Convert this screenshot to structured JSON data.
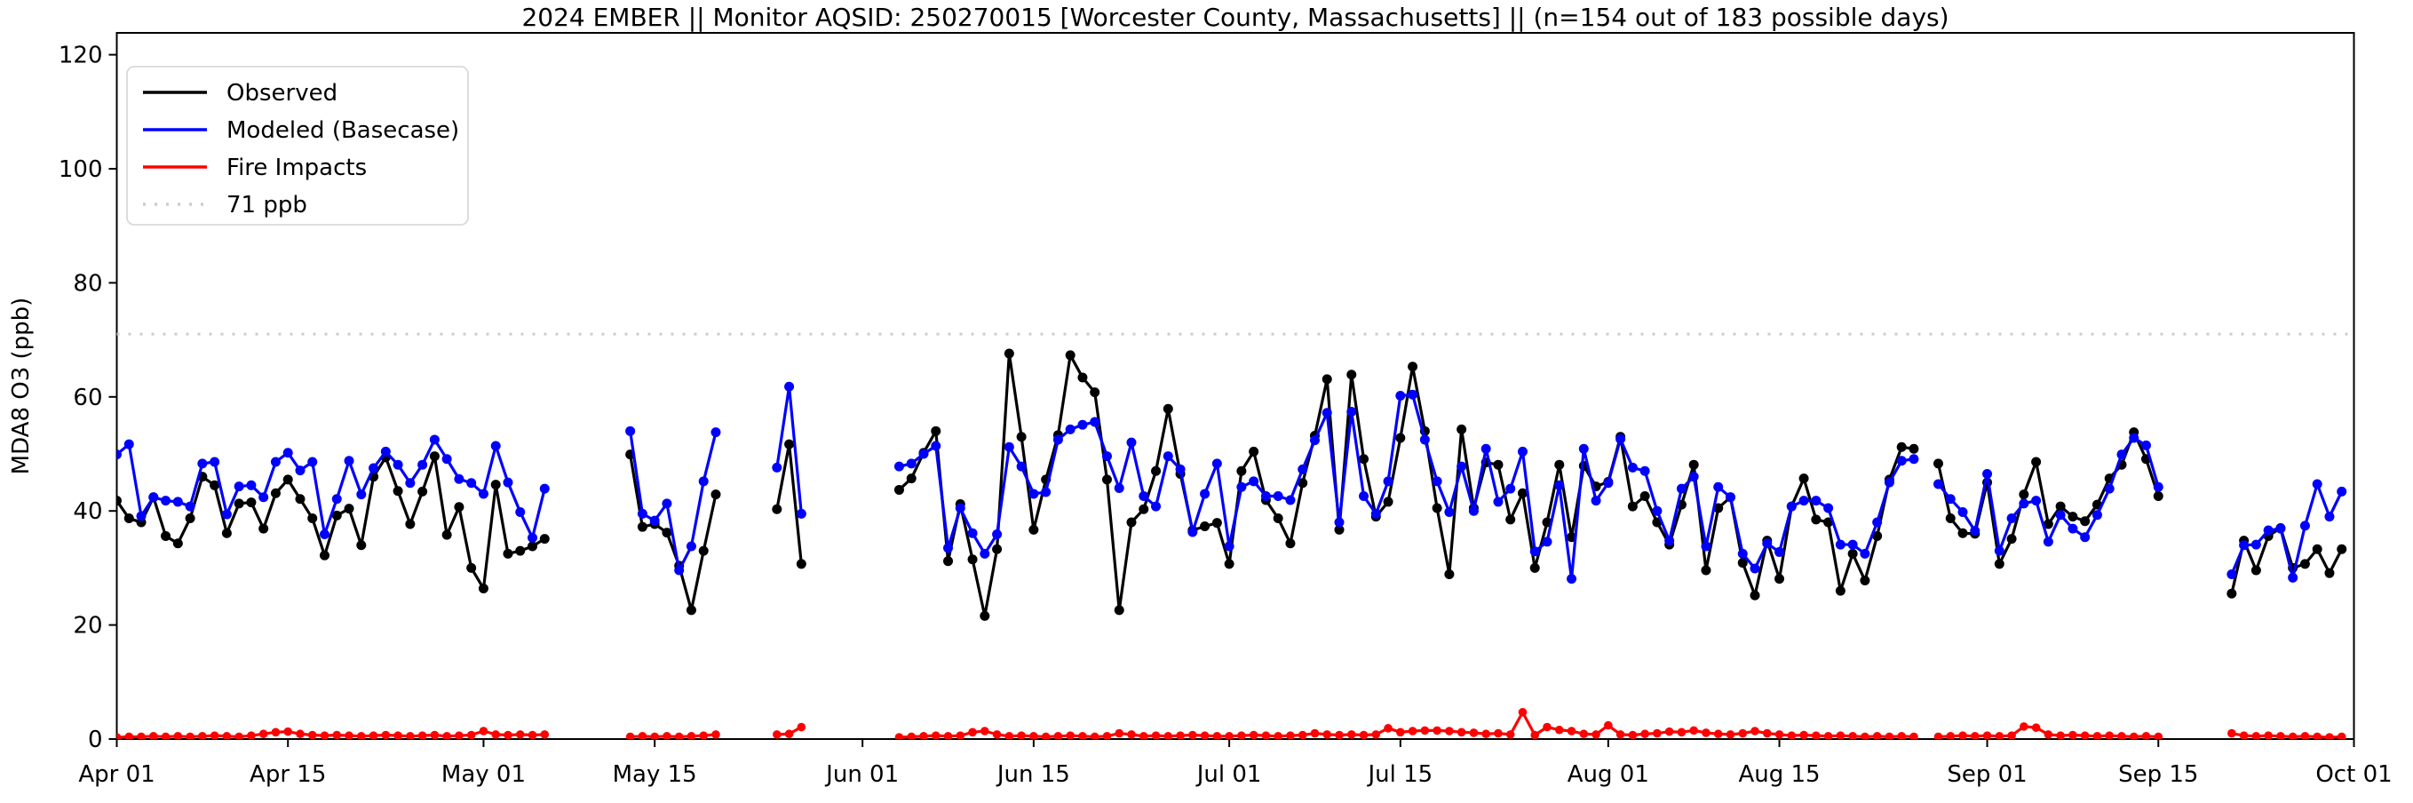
{
  "title": "2024 EMBER || Monitor AQSID: 250270015 [Worcester County, Massachusetts] || (n=154 out of 183 possible days)",
  "axes": {
    "ylabel": "MDA8 O3 (ppb)",
    "yticks": [
      0,
      20,
      40,
      60,
      80,
      100,
      120
    ],
    "xtick_days": [
      0,
      14,
      30,
      44,
      61,
      75,
      91,
      105,
      122,
      136,
      153,
      167,
      183
    ],
    "xtick_labels": [
      "Apr 01",
      "Apr 15",
      "May 01",
      "May 15",
      "Jun 01",
      "Jun 15",
      "Jul 01",
      "Jul 15",
      "Aug 01",
      "Aug 15",
      "Sep 01",
      "Sep 15",
      "Oct 01"
    ]
  },
  "legend": {
    "entries": [
      {
        "label": "Observed",
        "color": "#000000",
        "style": "solid"
      },
      {
        "label": "Modeled (Basecase)",
        "color": "#0000ff",
        "style": "solid"
      },
      {
        "label": "Fire Impacts",
        "color": "#ff0000",
        "style": "solid"
      },
      {
        "label": "71 ppb",
        "color": "#cccccc",
        "style": "dotted"
      }
    ]
  },
  "chart_data": {
    "type": "line",
    "title": "2024 EMBER || Monitor AQSID: 250270015 [Worcester County, Massachusetts] || (n=154 out of 183 possible days)",
    "xlabel": "",
    "ylabel": "MDA8 O3 (ppb)",
    "ylim": [
      0,
      120
    ],
    "x_axis": "daily from 2024-04-01 (day 0) to 2024-10-01 (day 183); data through Sep 30 (day 182); null = missing day",
    "threshold": {
      "value": 71,
      "label": "71 ppb",
      "color": "#cccccc",
      "style": "dotted"
    },
    "legend_position": "upper left",
    "grid": false,
    "series": [
      {
        "name": "Observed",
        "color": "#000000",
        "values": [
          41.8,
          38.7,
          38,
          42.4,
          35.6,
          34.3,
          38.7,
          46,
          44.5,
          36.1,
          41.3,
          41.5,
          36.9,
          43.1,
          45.5,
          42.1,
          38.7,
          32.2,
          39.2,
          40.4,
          34,
          46,
          49.4,
          43.5,
          37.7,
          43.4,
          49.6,
          35.8,
          40.7,
          30,
          26.4,
          44.6,
          32.5,
          33,
          33.8,
          35.1,
          null,
          null,
          null,
          null,
          null,
          null,
          49.9,
          37.2,
          37.7,
          36.2,
          30.4,
          22.6,
          33,
          42.9,
          null,
          null,
          null,
          null,
          40.3,
          51.7,
          30.7,
          null,
          null,
          null,
          null,
          null,
          null,
          null,
          43.7,
          45.7,
          50.2,
          54,
          31.2,
          41.2,
          31.5,
          21.6,
          33.3,
          67.6,
          53,
          36.7,
          45.5,
          53.3,
          67.3,
          63.4,
          60.8,
          45.5,
          22.6,
          38,
          40.3,
          47,
          57.9,
          46.5,
          36.6,
          37.3,
          37.9,
          30.7,
          47,
          50.4,
          41.9,
          38.7,
          34.3,
          44.9,
          53.2,
          63.1,
          36.7,
          63.9,
          49.1,
          39,
          41.6,
          52.8,
          65.3,
          54,
          40.5,
          28.9,
          54.3,
          40.5,
          48.5,
          48.1,
          38.5,
          43.1,
          30,
          38,
          48.1,
          35.4,
          47.9,
          44.3,
          45.1,
          53,
          40.8,
          42.6,
          38,
          34.1,
          41.1,
          48.1,
          29.6,
          40.5,
          42.4,
          30.9,
          25.2,
          34.8,
          28.1,
          40.8,
          45.7,
          38.5,
          38,
          26,
          32.5,
          27.8,
          35.6,
          45.5,
          51.2,
          50.9,
          null,
          48.3,
          38.7,
          36.1,
          36,
          45,
          30.7,
          35.1,
          42.9,
          48.6,
          37.7,
          40.8,
          39,
          38.2,
          41.1,
          45.7,
          48.1,
          53.8,
          49.1,
          42.6,
          null,
          null,
          null,
          null,
          null,
          25.5,
          34.8,
          29.6,
          35.6,
          37,
          30,
          30.7,
          33.3,
          29.1,
          33.3
        ]
      },
      {
        "name": "Modeled (Basecase)",
        "color": "#0000ff",
        "values": [
          49.9,
          51.7,
          39.1,
          42.4,
          41.8,
          41.6,
          40.8,
          48.3,
          48.6,
          39.4,
          44.3,
          44.5,
          42.4,
          48.6,
          50.2,
          47.1,
          48.6,
          35.9,
          42.1,
          48.8,
          42.9,
          47.5,
          50.4,
          48.1,
          44.9,
          48.1,
          52.5,
          49.1,
          45.6,
          44.9,
          43,
          51.4,
          45,
          39.8,
          35.3,
          43.9,
          null,
          null,
          null,
          null,
          null,
          null,
          54,
          39.5,
          38.3,
          41.3,
          29.6,
          33.8,
          45.2,
          53.8,
          null,
          null,
          null,
          null,
          47.6,
          61.8,
          39.5,
          null,
          null,
          null,
          null,
          null,
          null,
          null,
          47.8,
          48.3,
          50,
          51.4,
          33.5,
          40.5,
          36.1,
          32.5,
          35.9,
          51.2,
          47.8,
          43,
          43.3,
          52.5,
          54.3,
          55.1,
          55.6,
          49.6,
          44,
          52,
          42.6,
          40.8,
          49.6,
          47.3,
          36.3,
          43,
          48.3,
          33.8,
          44.2,
          45.2,
          42.6,
          42.6,
          41.9,
          47.3,
          52.4,
          57.2,
          38,
          57.4,
          42.6,
          39.5,
          45.2,
          60.2,
          60.4,
          52.5,
          45.2,
          39.8,
          47.8,
          40,
          50.9,
          41.6,
          43.9,
          50.4,
          32.9,
          34.6,
          44.5,
          28.1,
          50.9,
          41.8,
          44.9,
          52.6,
          47.6,
          47,
          40,
          34.8,
          43.9,
          46,
          33.8,
          44.2,
          42.4,
          32.5,
          29.9,
          34.3,
          32.8,
          40.8,
          41.8,
          41.8,
          40.5,
          34.1,
          34.1,
          32.5,
          38,
          45,
          48.8,
          49.1,
          null,
          44.7,
          42.1,
          39.8,
          36.5,
          46.5,
          33,
          38.7,
          41.3,
          41.8,
          34.6,
          39.3,
          36.9,
          35.4,
          39.3,
          43.9,
          49.9,
          52.8,
          51.5,
          44.2,
          null,
          null,
          null,
          null,
          null,
          28.9,
          34,
          34.1,
          36.6,
          36.9,
          28.3,
          37.4,
          44.7,
          39,
          43.4
        ]
      },
      {
        "name": "Fire Impacts",
        "color": "#ff0000",
        "values": [
          0.3,
          0.4,
          0.4,
          0.5,
          0.4,
          0.5,
          0.4,
          0.5,
          0.6,
          0.5,
          0.4,
          0.6,
          0.9,
          1.2,
          1.3,
          0.9,
          0.7,
          0.6,
          0.7,
          0.6,
          0.5,
          0.6,
          0.7,
          0.6,
          0.5,
          0.6,
          0.7,
          0.5,
          0.6,
          0.7,
          1.4,
          0.8,
          0.7,
          0.8,
          0.7,
          0.8,
          null,
          null,
          null,
          null,
          null,
          null,
          0.4,
          0.5,
          0.4,
          0.5,
          0.4,
          0.5,
          0.6,
          0.8,
          null,
          null,
          null,
          null,
          0.8,
          0.9,
          2.1,
          null,
          null,
          null,
          null,
          null,
          null,
          null,
          0.3,
          0.4,
          0.5,
          0.6,
          0.5,
          0.6,
          1.2,
          1.4,
          0.8,
          0.5,
          0.6,
          0.5,
          0.4,
          0.5,
          0.6,
          0.5,
          0.4,
          0.5,
          1,
          0.8,
          0.5,
          0.6,
          0.5,
          0.6,
          0.7,
          0.6,
          0.5,
          0.5,
          0.6,
          0.7,
          0.6,
          0.5,
          0.6,
          0.7,
          1,
          0.8,
          0.7,
          0.8,
          0.7,
          0.8,
          1.9,
          1.2,
          1.4,
          1.5,
          1.5,
          1.4,
          1.2,
          1.1,
          0.9,
          1,
          0.8,
          4.7,
          0.7,
          2.1,
          1.6,
          1.4,
          0.9,
          0.8,
          2.4,
          0.8,
          0.7,
          0.9,
          1,
          1.3,
          1.2,
          1.5,
          1.1,
          0.9,
          0.8,
          1,
          1.4,
          1,
          0.8,
          0.6,
          0.7,
          0.6,
          0.5,
          0.6,
          0.5,
          0.4,
          0.5,
          0.4,
          0.5,
          0.4,
          null,
          0.4,
          0.5,
          0.6,
          0.5,
          0.6,
          0.5,
          0.6,
          2.2,
          2,
          0.8,
          0.6,
          0.7,
          0.6,
          0.5,
          0.6,
          0.5,
          0.4,
          0.5,
          0.4,
          null,
          null,
          null,
          null,
          null,
          1,
          0.6,
          0.5,
          0.6,
          0.5,
          0.4,
          0.5,
          0.4,
          0.3,
          0.4
        ]
      }
    ]
  }
}
